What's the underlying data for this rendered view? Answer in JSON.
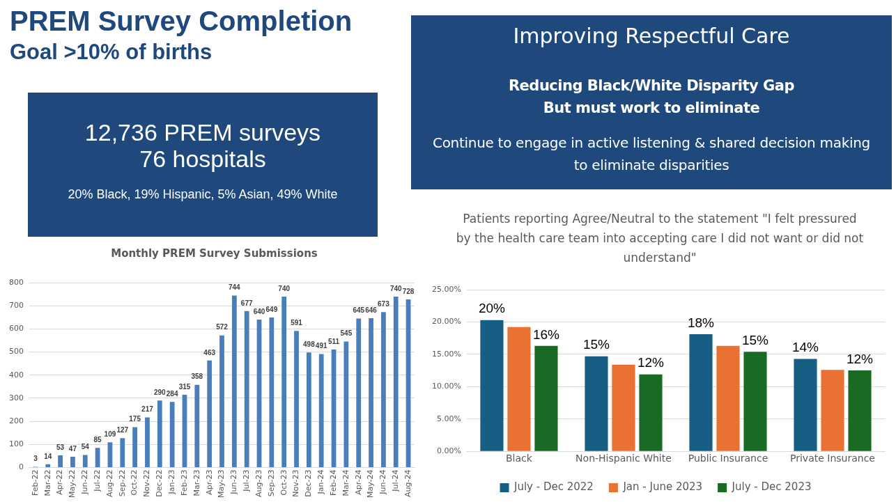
{
  "chart_data": [
    {
      "type": "other",
      "title": "PREM Survey Completion",
      "subtitle": "Goal >10% of births",
      "annotations": [
        "12,736 PREM surveys",
        "76 hospitals",
        "20% Black, 19% Hispanic, 5% Asian, 49% White"
      ]
    },
    {
      "type": "other",
      "title": "Improving Respectful Care",
      "annotations": [
        "Reducing Black/White Disparity Gap",
        "But must work to eliminate",
        "Continue to engage in active listening & shared decision making to eliminate disparities"
      ]
    },
    {
      "type": "bar",
      "title": "Monthly PREM Survey Submissions",
      "categories": [
        "Feb-22",
        "Mar-22",
        "Apr-22",
        "May-22",
        "Jun-22",
        "Jul-22",
        "Aug-22",
        "Sep-22",
        "Oct-22",
        "Nov-22",
        "Dec-22",
        "Jan-23",
        "Feb-23",
        "Mar-23",
        "Apr-23",
        "May-23",
        "Jun-23",
        "Jul-23",
        "Aug-23",
        "Sep-23",
        "Oct-23",
        "Nov-23",
        "Dec-23",
        "Jan-24",
        "Feb-24",
        "Mar-24",
        "Apr-24",
        "May-24",
        "Jun-24",
        "Jul-24",
        "Aug-24"
      ],
      "values": [
        3,
        14,
        53,
        47,
        54,
        85,
        109,
        127,
        175,
        217,
        290,
        284,
        315,
        358,
        463,
        572,
        744,
        677,
        640,
        649,
        740,
        591,
        498,
        491,
        511,
        545,
        645,
        646,
        673,
        740,
        728
      ],
      "color": "#4a7ebb",
      "ylim": [
        0,
        800
      ],
      "yticks": [
        0,
        100,
        200,
        300,
        400,
        500,
        600,
        700,
        800
      ],
      "grid": "y",
      "data_labels": true
    },
    {
      "type": "bar",
      "title": "Patients reporting Agree/Neutral to the statement \"I felt pressured by the health care team into accepting care I did not want or did not understand\"",
      "categories": [
        "Black",
        "Non-Hispanic White",
        "Public Insurance",
        "Private Insurance"
      ],
      "series": [
        {
          "name": "July - Dec 2022",
          "color": "#165e83",
          "values": [
            20.3,
            14.7,
            18.1,
            14.3
          ],
          "value_labels": [
            "20%",
            "15%",
            "18%",
            "14%"
          ]
        },
        {
          "name": "Jan - June 2023",
          "color": "#e97132",
          "values": [
            19.2,
            13.4,
            16.3,
            12.6
          ]
        },
        {
          "name": "July - Dec 2023",
          "color": "#196b24",
          "values": [
            16.3,
            11.9,
            15.4,
            12.5
          ],
          "value_labels": [
            "16%",
            "12%",
            "15%",
            "12%"
          ]
        }
      ],
      "ylim": [
        0,
        25
      ],
      "yticks": [
        {
          "value": 0,
          "label": "0.00%"
        },
        {
          "value": 5,
          "label": "5.00%"
        },
        {
          "value": 10,
          "label": "10.00%"
        },
        {
          "value": 15,
          "label": "15.00%"
        },
        {
          "value": 20,
          "label": "20.00%"
        },
        {
          "value": 25,
          "label": "25.00%"
        }
      ],
      "grid": "y",
      "legend": "bottom"
    }
  ]
}
